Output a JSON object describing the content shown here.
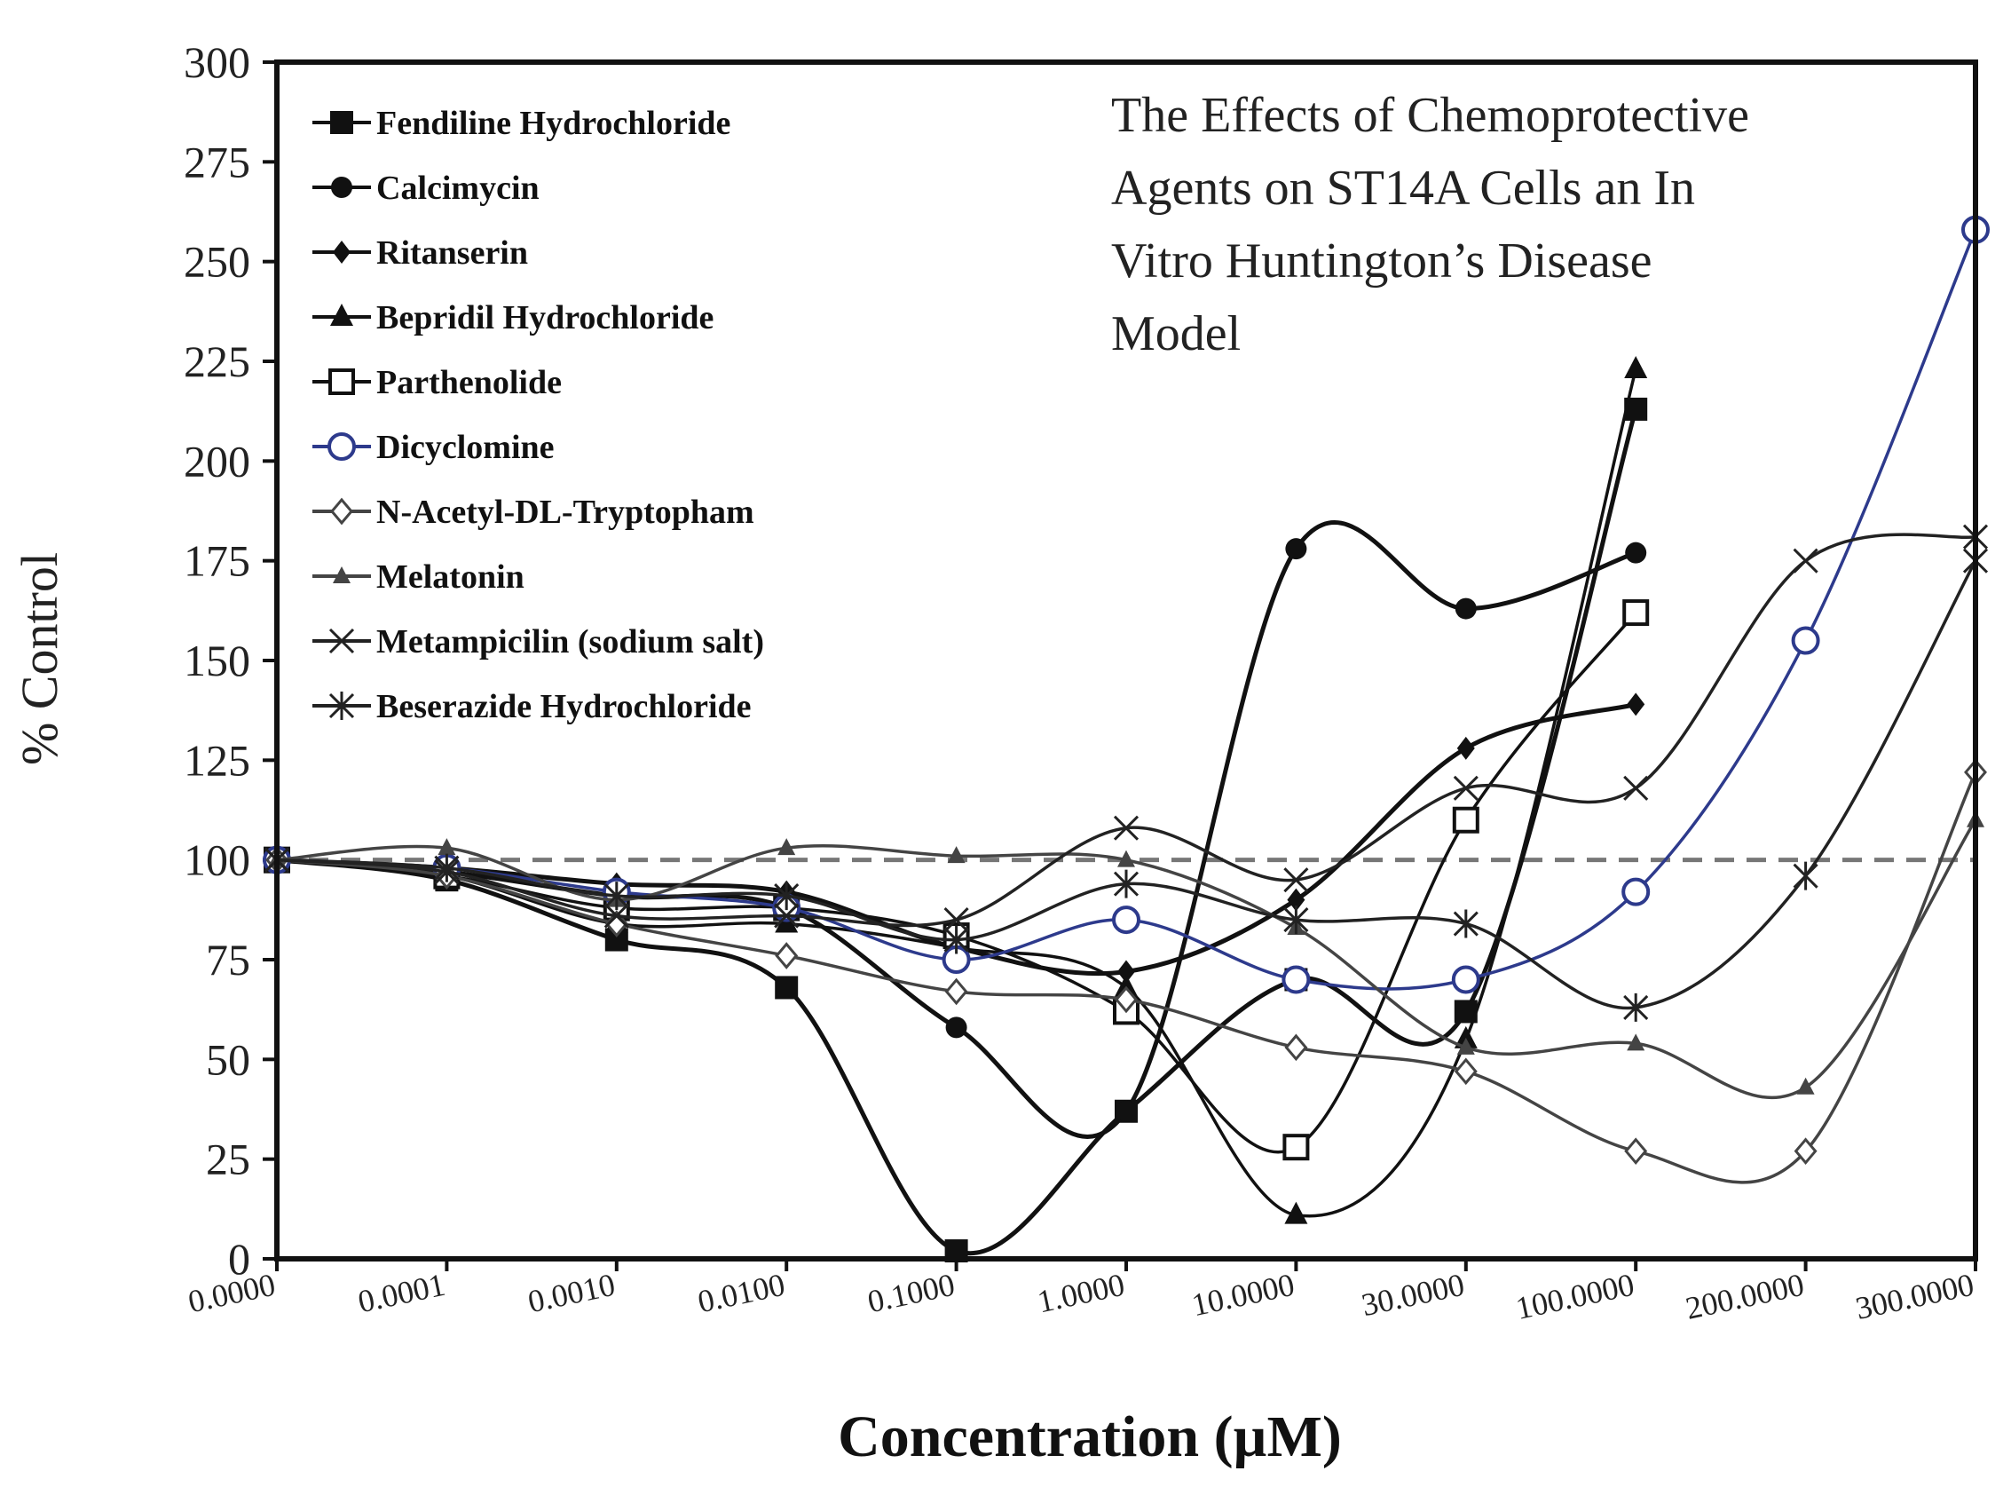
{
  "chart_data": {
    "type": "line",
    "title_lines": [
      "The Effects of Chemoprotective",
      "Agents on ST14A Cells an In",
      "Vitro Huntington’s Disease",
      "Model"
    ],
    "xlabel": "Concentration (µM)",
    "ylabel": "% Control",
    "categories": [
      "0.0000",
      "0.0001",
      "0.0010",
      "0.0100",
      "0.1000",
      "1.0000",
      "10.0000",
      "30.0000",
      "100.0000",
      "200.0000",
      "300.0000"
    ],
    "yticks": [
      "0",
      "25",
      "50",
      "75",
      "100",
      "125",
      "150",
      "175",
      "200",
      "225",
      "250",
      "275",
      "300"
    ],
    "ylim": [
      0,
      300
    ],
    "reference_line": 100,
    "legend_position": "top-left",
    "series": [
      {
        "name": "Fendiline Hydrochloride",
        "marker": "square-filled",
        "color": "#111111",
        "values": [
          100,
          95,
          80,
          68,
          2,
          37,
          70,
          62,
          213,
          null,
          null
        ]
      },
      {
        "name": "Calcimycin",
        "marker": "circle-filled",
        "color": "#111111",
        "values": [
          100,
          97,
          91,
          88,
          58,
          37,
          178,
          163,
          177,
          null,
          null
        ]
      },
      {
        "name": "Ritanserin",
        "marker": "diamond-filled",
        "color": "#111111",
        "values": [
          100,
          98,
          94,
          92,
          78,
          72,
          90,
          128,
          139,
          null,
          null
        ]
      },
      {
        "name": "Bepridil Hydrochloride",
        "marker": "triangle-filled",
        "color": "#111111",
        "values": [
          100,
          96,
          84,
          84,
          78,
          68,
          11,
          55,
          223,
          null,
          null
        ]
      },
      {
        "name": "Parthenolide",
        "marker": "square-open",
        "color": "#111111",
        "values": [
          100,
          96,
          88,
          88,
          81,
          62,
          28,
          110,
          162,
          null,
          null
        ]
      },
      {
        "name": "Dicyclomine",
        "marker": "circle-open",
        "color": "#2d3a8c",
        "values": [
          100,
          98,
          92,
          88,
          75,
          85,
          70,
          70,
          92,
          155,
          258
        ]
      },
      {
        "name": "N-Acetyl-DL-Tryptopham",
        "marker": "diamond-open",
        "color": "#444444",
        "values": [
          100,
          96,
          84,
          76,
          67,
          65,
          53,
          47,
          27,
          27,
          122
        ]
      },
      {
        "name": "Melatonin",
        "marker": "triangle-small",
        "color": "#444444",
        "values": [
          100,
          103,
          90,
          103,
          101,
          100,
          83,
          53,
          54,
          43,
          110
        ]
      },
      {
        "name": "Metampicilin (sodium salt)",
        "marker": "x",
        "color": "#222222",
        "values": [
          100,
          97,
          86,
          86,
          85,
          108,
          95,
          118,
          118,
          175,
          181
        ]
      },
      {
        "name": "Beserazide Hydrochloride",
        "marker": "star",
        "color": "#222222",
        "values": [
          100,
          98,
          91,
          91,
          80,
          94,
          85,
          84,
          63,
          96,
          175
        ]
      }
    ]
  }
}
